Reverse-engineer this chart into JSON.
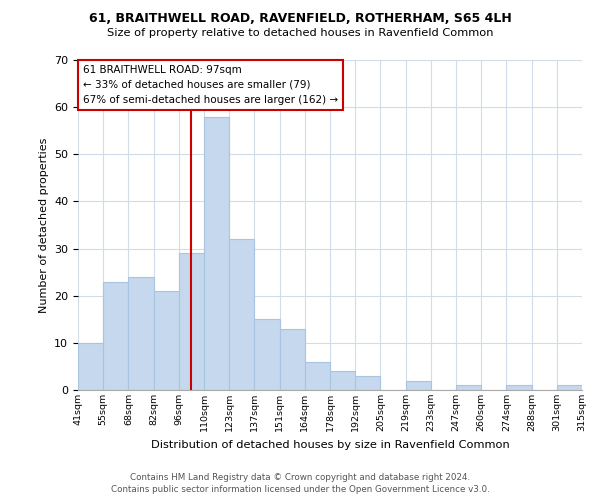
{
  "title1": "61, BRAITHWELL ROAD, RAVENFIELD, ROTHERHAM, S65 4LH",
  "title2": "Size of property relative to detached houses in Ravenfield Common",
  "xlabel": "Distribution of detached houses by size in Ravenfield Common",
  "ylabel": "Number of detached properties",
  "bin_labels": [
    "41sqm",
    "55sqm",
    "68sqm",
    "82sqm",
    "96sqm",
    "110sqm",
    "123sqm",
    "137sqm",
    "151sqm",
    "164sqm",
    "178sqm",
    "192sqm",
    "205sqm",
    "219sqm",
    "233sqm",
    "247sqm",
    "260sqm",
    "274sqm",
    "288sqm",
    "301sqm",
    "315sqm"
  ],
  "bar_heights": [
    10,
    23,
    24,
    21,
    29,
    58,
    32,
    15,
    13,
    6,
    4,
    3,
    0,
    2,
    0,
    1,
    0,
    1,
    0,
    1
  ],
  "bar_color": "#c5d8ed",
  "bar_edge_color": "#a8c4e0",
  "vline_color": "#cc0000",
  "vline_x": 4.5,
  "annotation_text_line1": "61 BRAITHWELL ROAD: 97sqm",
  "annotation_text_line2": "← 33% of detached houses are smaller (79)",
  "annotation_text_line3": "67% of semi-detached houses are larger (162) →",
  "box_edge_color": "#cc0000",
  "ylim": [
    0,
    70
  ],
  "yticks": [
    0,
    10,
    20,
    30,
    40,
    50,
    60,
    70
  ],
  "footer1": "Contains HM Land Registry data © Crown copyright and database right 2024.",
  "footer2": "Contains public sector information licensed under the Open Government Licence v3.0."
}
